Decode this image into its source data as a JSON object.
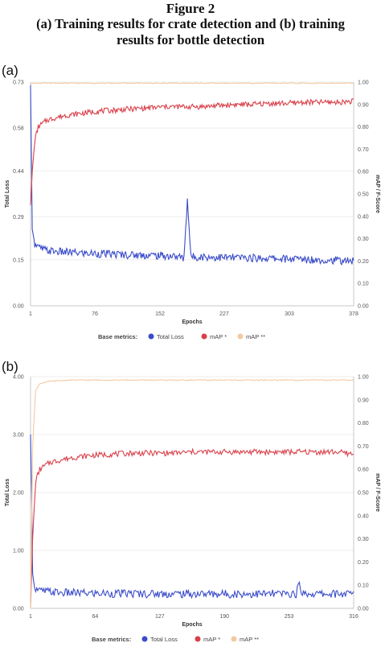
{
  "figure": {
    "label": "Figure 2",
    "caption_line1": "(a) Training results for crate detection and (b) training",
    "caption_line2": "results for bottle detection"
  },
  "chart_data": [
    {
      "panel": "(a)",
      "type": "line",
      "xlabel": "Epochs",
      "ylabel_left": "Total Loss",
      "ylabel_right": "mAP / F-Score",
      "x_ticks": [
        "1",
        "76",
        "152",
        "227",
        "303",
        "378"
      ],
      "y_left_ticks": [
        "0.00",
        "0.15",
        "0.29",
        "0.44",
        "0.58",
        "0.73"
      ],
      "y_right_ticks": [
        "0.00",
        "0.10",
        "0.20",
        "0.30",
        "0.40",
        "0.50",
        "0.60",
        "0.70",
        "0.80",
        "0.90",
        "1.00"
      ],
      "xlim": [
        1,
        378
      ],
      "ylim_left": [
        0,
        0.73
      ],
      "ylim_right": [
        0,
        1.0
      ],
      "grid": "horizontal",
      "legend": {
        "title": "Base metrics:",
        "position": "bottom-center",
        "items": [
          "Total Loss",
          "mAP *",
          "mAP **"
        ]
      },
      "series": [
        {
          "name": "Total Loss",
          "axis": "left",
          "color": "#3a4cc9",
          "points": [
            [
              1,
              0.72
            ],
            [
              3,
              0.25
            ],
            [
              6,
              0.2
            ],
            [
              10,
              0.19
            ],
            [
              20,
              0.18
            ],
            [
              40,
              0.175
            ],
            [
              60,
              0.172
            ],
            [
              80,
              0.17
            ],
            [
              100,
              0.168
            ],
            [
              120,
              0.166
            ],
            [
              140,
              0.165
            ],
            [
              160,
              0.163
            ],
            [
              174,
              0.16
            ],
            [
              180,
              0.155
            ],
            [
              184,
              0.35
            ],
            [
              188,
              0.16
            ],
            [
              200,
              0.16
            ],
            [
              220,
              0.158
            ],
            [
              240,
              0.157
            ],
            [
              260,
              0.156
            ],
            [
              280,
              0.155
            ],
            [
              300,
              0.153
            ],
            [
              320,
              0.152
            ],
            [
              340,
              0.15
            ],
            [
              360,
              0.148
            ],
            [
              378,
              0.145
            ]
          ]
        },
        {
          "name": "mAP *",
          "axis": "right",
          "color": "#d9404a",
          "points": [
            [
              1,
              0.45
            ],
            [
              3,
              0.6
            ],
            [
              6,
              0.74
            ],
            [
              10,
              0.8
            ],
            [
              20,
              0.83
            ],
            [
              40,
              0.85
            ],
            [
              60,
              0.86
            ],
            [
              80,
              0.87
            ],
            [
              100,
              0.875
            ],
            [
              120,
              0.88
            ],
            [
              140,
              0.885
            ],
            [
              160,
              0.89
            ],
            [
              180,
              0.89
            ],
            [
              200,
              0.89
            ],
            [
              220,
              0.895
            ],
            [
              240,
              0.9
            ],
            [
              260,
              0.9
            ],
            [
              280,
              0.905
            ],
            [
              300,
              0.905
            ],
            [
              320,
              0.91
            ],
            [
              340,
              0.91
            ],
            [
              360,
              0.91
            ],
            [
              378,
              0.915
            ]
          ]
        },
        {
          "name": "mAP **",
          "axis": "right",
          "color": "#f3c9a1",
          "points": [
            [
              1,
              0.99
            ],
            [
              4,
              0.995
            ],
            [
              20,
              0.995
            ],
            [
              100,
              0.995
            ],
            [
              200,
              0.995
            ],
            [
              300,
              0.995
            ],
            [
              378,
              0.995
            ]
          ]
        }
      ]
    },
    {
      "panel": "(b)",
      "type": "line",
      "xlabel": "Epochs",
      "ylabel_left": "Total Loss",
      "ylabel_right": "mAP / F-Score",
      "x_ticks": [
        "1",
        "64",
        "127",
        "190",
        "253",
        "316"
      ],
      "y_left_ticks": [
        "0.00",
        "1.00",
        "2.00",
        "3.00",
        "4.00"
      ],
      "y_right_ticks": [
        "0.00",
        "0.10",
        "0.20",
        "0.30",
        "0.40",
        "0.50",
        "0.60",
        "0.70",
        "0.80",
        "0.90",
        "1.00"
      ],
      "xlim": [
        1,
        316
      ],
      "ylim_left": [
        0,
        4.0
      ],
      "ylim_right": [
        0,
        1.0
      ],
      "grid": "horizontal",
      "legend": {
        "title": "Base metrics:",
        "position": "bottom-center",
        "items": [
          "Total Loss",
          "mAP *",
          "mAP **"
        ]
      },
      "series": [
        {
          "name": "Total Loss",
          "axis": "left",
          "color": "#3a4cc9",
          "points": [
            [
              1,
              3.0
            ],
            [
              2,
              2.0
            ],
            [
              3,
              0.6
            ],
            [
              5,
              0.35
            ],
            [
              10,
              0.3
            ],
            [
              30,
              0.27
            ],
            [
              60,
              0.26
            ],
            [
              100,
              0.255
            ],
            [
              150,
              0.25
            ],
            [
              200,
              0.25
            ],
            [
              250,
              0.25
            ],
            [
              260,
              0.25
            ],
            [
              263,
              0.42
            ],
            [
              266,
              0.26
            ],
            [
              280,
              0.25
            ],
            [
              300,
              0.25
            ],
            [
              316,
              0.25
            ]
          ]
        },
        {
          "name": "mAP *",
          "axis": "right",
          "color": "#d9404a",
          "points": [
            [
              1,
              0.0
            ],
            [
              3,
              0.3
            ],
            [
              6,
              0.55
            ],
            [
              10,
              0.6
            ],
            [
              20,
              0.63
            ],
            [
              40,
              0.65
            ],
            [
              60,
              0.66
            ],
            [
              80,
              0.665
            ],
            [
              100,
              0.67
            ],
            [
              120,
              0.67
            ],
            [
              140,
              0.67
            ],
            [
              160,
              0.675
            ],
            [
              180,
              0.675
            ],
            [
              200,
              0.675
            ],
            [
              220,
              0.675
            ],
            [
              240,
              0.675
            ],
            [
              260,
              0.675
            ],
            [
              280,
              0.675
            ],
            [
              300,
              0.675
            ],
            [
              316,
              0.665
            ]
          ]
        },
        {
          "name": "mAP **",
          "axis": "right",
          "color": "#f3c9a1",
          "points": [
            [
              1,
              0.0
            ],
            [
              3,
              0.7
            ],
            [
              6,
              0.94
            ],
            [
              10,
              0.97
            ],
            [
              20,
              0.98
            ],
            [
              40,
              0.985
            ],
            [
              100,
              0.985
            ],
            [
              200,
              0.985
            ],
            [
              316,
              0.985
            ]
          ]
        }
      ]
    }
  ]
}
